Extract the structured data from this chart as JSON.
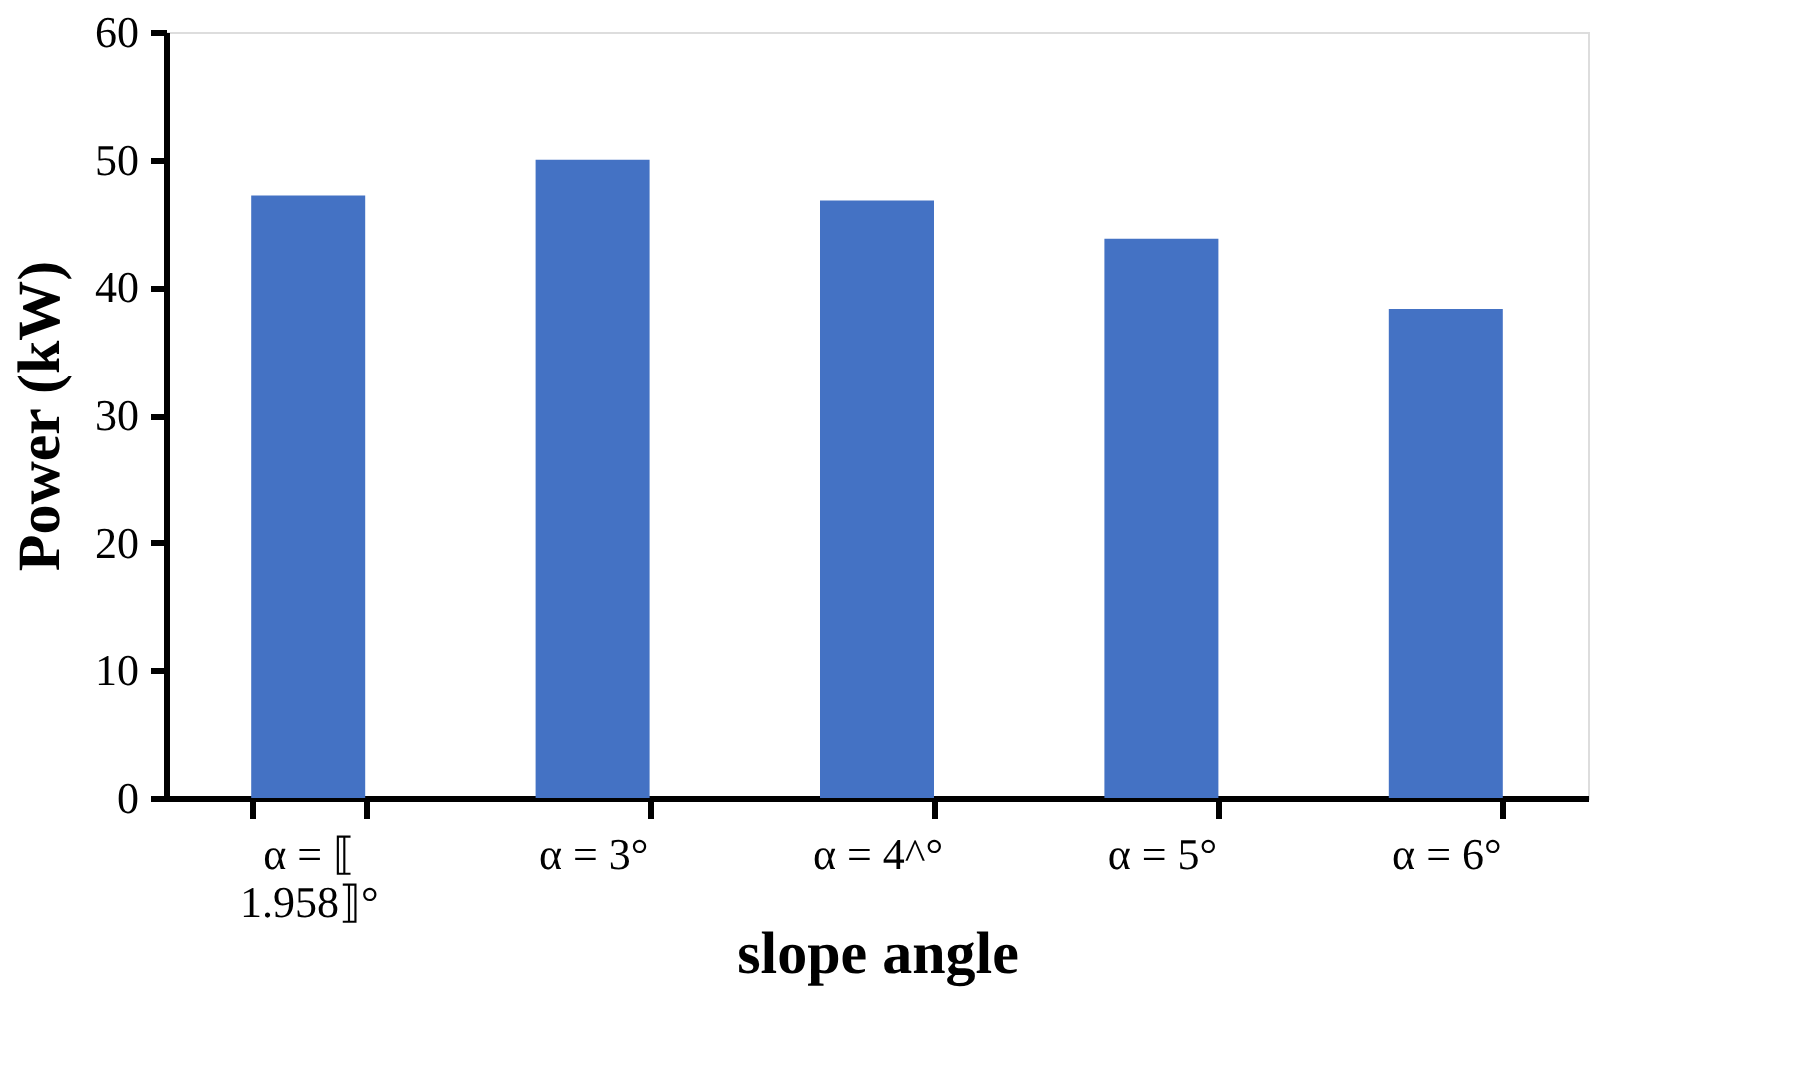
{
  "chart_data": {
    "type": "bar",
    "xlabel": "slope angle",
    "ylabel": "Power (kW)",
    "categories": [
      "α = ⟦1.958⟧°",
      "α = 3°",
      "α = 4^°",
      "α = 5°",
      "α = 6°"
    ],
    "values": [
      47.2,
      50.0,
      46.8,
      43.8,
      38.3
    ],
    "color": "#4472c4",
    "ylim": [
      0,
      60
    ],
    "yticks": [
      0,
      10,
      20,
      30,
      40,
      50,
      60
    ],
    "grid": false
  }
}
